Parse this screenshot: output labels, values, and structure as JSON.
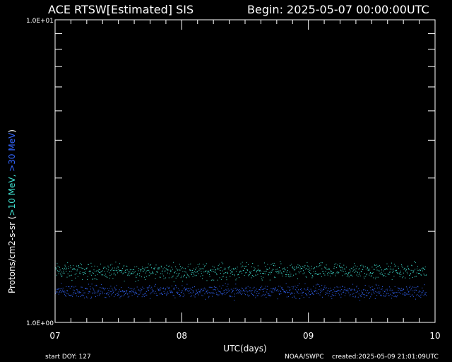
{
  "header": {
    "title": "ACE RTSW[Estimated] SIS",
    "begin": "Begin: 2025-05-07 00:00:00UTC"
  },
  "footer": {
    "start_doy": "start DOY:  127",
    "agency": "NOAA/SWPC",
    "created": "created:2025-05-09 21:01:09UTC"
  },
  "colors": {
    "background": "#000000",
    "axes": "#ffffff",
    "series_10mev": "#40e0d0",
    "series_30mev": "#3366ff"
  },
  "chart_data": {
    "type": "scatter",
    "title": "ACE RTSW[Estimated] SIS",
    "xlabel": "UTC(days)",
    "ylabel_parts": [
      {
        "text": "Protons/cm2-s-sr   (",
        "color": "#ffffff"
      },
      {
        "text": ">10 MeV,",
        "color": "#40e0d0"
      },
      {
        "text": "  >30 MeV",
        "color": "#3366ff"
      },
      {
        "text": ")",
        "color": "#ffffff"
      }
    ],
    "x_ticks": [
      "07",
      "08",
      "09",
      "10"
    ],
    "xlim": [
      7,
      10
    ],
    "y_scale": "log",
    "ylim": [
      1.0,
      10.0
    ],
    "y_tick_labels": [
      "1.0E+00",
      "1.0E+01"
    ],
    "series": [
      {
        "name": ">10 MeV",
        "color": "#40e0d0",
        "typical_value": 1.48,
        "spread": 0.06
      },
      {
        "name": ">30 MeV",
        "color": "#3366ff",
        "typical_value": 1.27,
        "spread": 0.05
      }
    ]
  }
}
